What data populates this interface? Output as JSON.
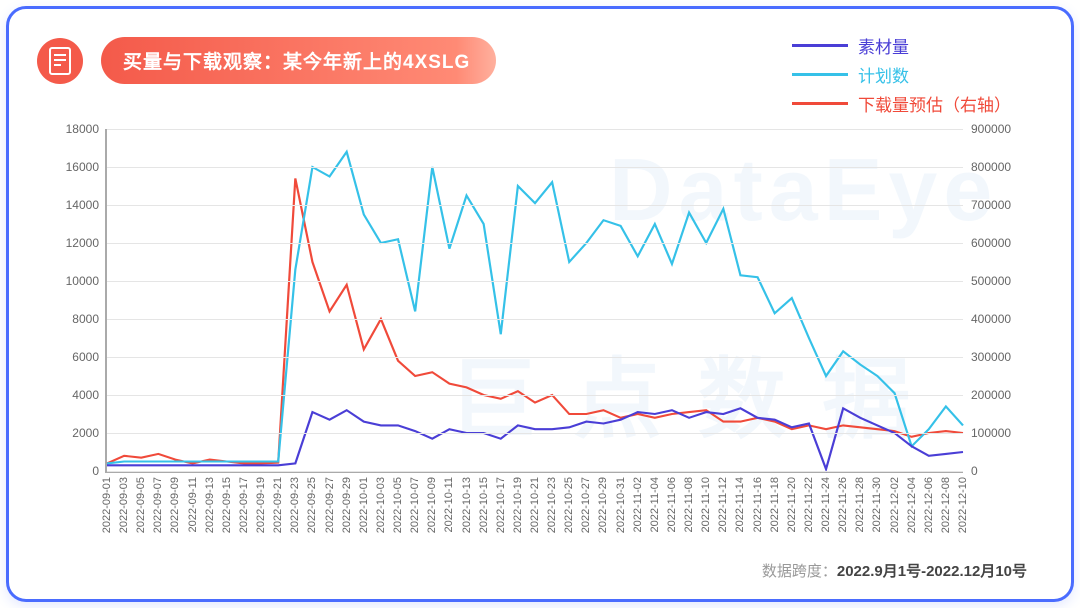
{
  "title": "买量与下载观察：某今年新上的4XSLG",
  "footer_prefix": "数据跨度：",
  "footer_range": "2022.9月1号-2022.12月10号",
  "watermarks": [
    "DataEye",
    "巨 点 数 据"
  ],
  "legend": {
    "s1": {
      "label": "素材量",
      "color": "#4a3ed6"
    },
    "s2": {
      "label": "计划数",
      "color": "#35c1e8"
    },
    "s3": {
      "label": "下载量预估（右轴）",
      "color": "#f04a3a"
    }
  },
  "chart": {
    "type": "line",
    "background_color": "#ffffff",
    "grid_color": "#e5e5e5",
    "axis_color": "#aaaaaa",
    "label_fontsize": 12,
    "xlabel_fontsize": 11,
    "line_width": 2.2,
    "left_axis": {
      "min": 0,
      "max": 18000,
      "step": 2000
    },
    "right_axis": {
      "min": 0,
      "max": 900000,
      "step": 100000
    },
    "x_labels": [
      "2022-09-01",
      "2022-09-03",
      "2022-09-05",
      "2022-09-07",
      "2022-09-09",
      "2022-09-11",
      "2022-09-13",
      "2022-09-15",
      "2022-09-17",
      "2022-09-19",
      "2022-09-21",
      "2022-09-23",
      "2022-09-25",
      "2022-09-27",
      "2022-09-29",
      "2022-10-01",
      "2022-10-03",
      "2022-10-05",
      "2022-10-07",
      "2022-10-09",
      "2022-10-11",
      "2022-10-13",
      "2022-10-15",
      "2022-10-17",
      "2022-10-19",
      "2022-10-21",
      "2022-10-23",
      "2022-10-25",
      "2022-10-27",
      "2022-10-29",
      "2022-10-31",
      "2022-11-02",
      "2022-11-04",
      "2022-11-06",
      "2022-11-08",
      "2022-11-10",
      "2022-11-12",
      "2022-11-14",
      "2022-11-16",
      "2022-11-18",
      "2022-11-20",
      "2022-11-22",
      "2022-11-24",
      "2022-11-26",
      "2022-11-28",
      "2022-11-30",
      "2022-12-02",
      "2022-12-04",
      "2022-12-06",
      "2022-12-08",
      "2022-12-10"
    ],
    "series": {
      "s1": {
        "axis": "left",
        "values": [
          300,
          300,
          300,
          300,
          300,
          300,
          300,
          300,
          300,
          300,
          300,
          400,
          3100,
          2700,
          3200,
          2600,
          2400,
          2400,
          2100,
          1700,
          2200,
          2000,
          2000,
          1700,
          2400,
          2200,
          2200,
          2300,
          2600,
          2500,
          2700,
          3100,
          3000,
          3200,
          2800,
          3100,
          3000,
          3300,
          2800,
          2700,
          2300,
          2500,
          100,
          3300,
          2800,
          2400,
          2000,
          1300,
          800,
          900,
          1000
        ]
      },
      "s2": {
        "axis": "left",
        "values": [
          400,
          500,
          500,
          500,
          500,
          500,
          500,
          500,
          500,
          500,
          500,
          10600,
          16000,
          15500,
          16800,
          13500,
          12000,
          12200,
          8400,
          16000,
          11700,
          14500,
          13000,
          7200,
          15000,
          14100,
          15200,
          11000,
          12000,
          13200,
          12900,
          11300,
          13000,
          10900,
          13600,
          12000,
          13800,
          10300,
          10200,
          8300,
          9100,
          7000,
          5000,
          6300,
          5600,
          5000,
          4100,
          1300,
          2200,
          3400,
          2400
        ]
      },
      "s3": {
        "axis": "right",
        "values": [
          20000,
          40000,
          35000,
          45000,
          30000,
          20000,
          30000,
          25000,
          20000,
          20000,
          22000,
          770000,
          550000,
          420000,
          490000,
          320000,
          400000,
          290000,
          250000,
          260000,
          230000,
          220000,
          200000,
          190000,
          210000,
          180000,
          200000,
          150000,
          150000,
          160000,
          140000,
          150000,
          140000,
          150000,
          155000,
          160000,
          130000,
          130000,
          140000,
          130000,
          110000,
          120000,
          110000,
          120000,
          115000,
          110000,
          105000,
          90000,
          100000,
          105000,
          100000
        ]
      }
    }
  }
}
